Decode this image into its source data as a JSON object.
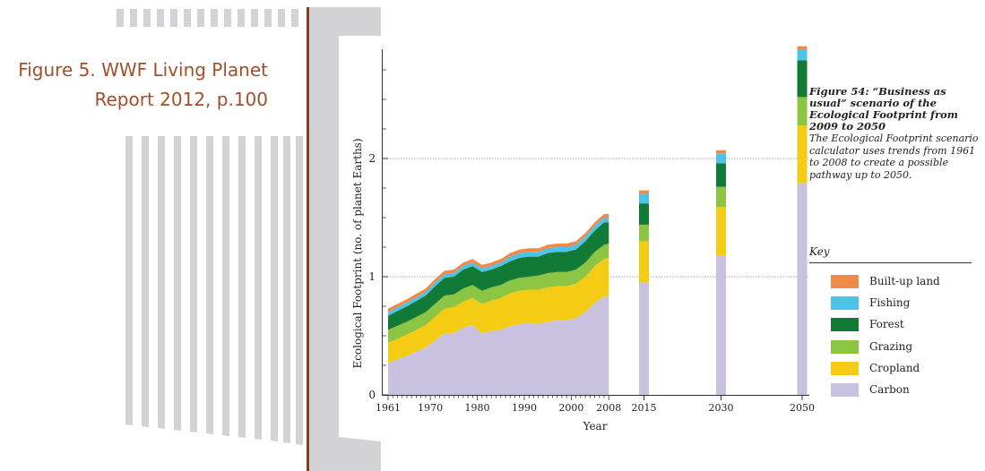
{
  "slide": {
    "title_lines": [
      "Figure 5. WWF Living Planet",
      "Report 2012, p.100"
    ]
  },
  "caption": {
    "title": "Figure 54: “Business as usual” scenario of the Ecological Footprint from 2009 to 2050",
    "body": "The Ecological Footprint scenario calculator uses trends from 1961 to 2008 to create a possible pathway up to 2050."
  },
  "legend": {
    "title": "Key"
  },
  "colors": {
    "title": "#a0502a",
    "accent_bar": "#8b3a22",
    "panel": "#d3d3d5"
  },
  "chart_data": {
    "type": "area",
    "title": "",
    "xlabel": "Year",
    "ylabel": "Ecological Footprint (no. of planet Earths)",
    "ylim": [
      0,
      2.9
    ],
    "y_ticks": [
      0,
      1,
      2
    ],
    "x_ticks": [
      "1961",
      "1970",
      "1980",
      "1990",
      "2000",
      "2008",
      "2015",
      "2030",
      "2050"
    ],
    "gridlines_at": [
      1,
      2
    ],
    "legend_position": "right",
    "history": {
      "x": [
        1961,
        1965,
        1969,
        1971,
        1973,
        1975,
        1977,
        1979,
        1981,
        1983,
        1985,
        1987,
        1989,
        1991,
        1993,
        1995,
        1997,
        1999,
        2001,
        2003,
        2005,
        2007,
        2008
      ],
      "series": [
        {
          "name": "Carbon",
          "color": "#c8c2e0",
          "values": [
            0.27,
            0.33,
            0.4,
            0.46,
            0.52,
            0.52,
            0.57,
            0.59,
            0.52,
            0.54,
            0.55,
            0.58,
            0.6,
            0.61,
            0.6,
            0.62,
            0.63,
            0.63,
            0.65,
            0.7,
            0.78,
            0.83,
            0.84
          ]
        },
        {
          "name": "Cropland",
          "color": "#f5cc14",
          "values": [
            0.17,
            0.18,
            0.19,
            0.2,
            0.21,
            0.22,
            0.22,
            0.23,
            0.25,
            0.26,
            0.27,
            0.28,
            0.28,
            0.28,
            0.29,
            0.29,
            0.29,
            0.29,
            0.29,
            0.3,
            0.31,
            0.32,
            0.32
          ]
        },
        {
          "name": "Grazing",
          "color": "#8cc443",
          "values": [
            0.11,
            0.11,
            0.11,
            0.11,
            0.11,
            0.11,
            0.11,
            0.11,
            0.11,
            0.11,
            0.11,
            0.11,
            0.11,
            0.11,
            0.12,
            0.12,
            0.12,
            0.12,
            0.12,
            0.12,
            0.12,
            0.12,
            0.12
          ]
        },
        {
          "name": "Forest",
          "color": "#117a37",
          "values": [
            0.12,
            0.13,
            0.14,
            0.15,
            0.15,
            0.15,
            0.16,
            0.16,
            0.16,
            0.15,
            0.16,
            0.16,
            0.17,
            0.17,
            0.16,
            0.17,
            0.17,
            0.17,
            0.17,
            0.18,
            0.18,
            0.19,
            0.18
          ]
        },
        {
          "name": "Fishing",
          "color": "#4ec3ea",
          "values": [
            0.03,
            0.03,
            0.03,
            0.03,
            0.03,
            0.03,
            0.03,
            0.03,
            0.03,
            0.03,
            0.03,
            0.04,
            0.04,
            0.04,
            0.04,
            0.04,
            0.04,
            0.04,
            0.04,
            0.04,
            0.04,
            0.04,
            0.04
          ]
        },
        {
          "name": "Built-up land",
          "color": "#f08a48",
          "values": [
            0.03,
            0.03,
            0.03,
            0.03,
            0.03,
            0.03,
            0.03,
            0.03,
            0.03,
            0.03,
            0.03,
            0.03,
            0.03,
            0.03,
            0.03,
            0.03,
            0.03,
            0.03,
            0.03,
            0.03,
            0.03,
            0.03,
            0.03
          ]
        }
      ]
    },
    "projections": {
      "x": [
        2015,
        2030,
        2050
      ],
      "series": [
        {
          "name": "Carbon",
          "values": [
            0.95,
            1.18,
            1.79
          ]
        },
        {
          "name": "Cropland",
          "values": [
            0.35,
            0.41,
            0.49
          ]
        },
        {
          "name": "Grazing",
          "values": [
            0.14,
            0.17,
            0.24
          ]
        },
        {
          "name": "Forest",
          "values": [
            0.18,
            0.2,
            0.31
          ]
        },
        {
          "name": "Fishing",
          "values": [
            0.08,
            0.08,
            0.09
          ]
        },
        {
          "name": "Built-up land",
          "values": [
            0.03,
            0.03,
            0.03
          ]
        }
      ]
    }
  }
}
